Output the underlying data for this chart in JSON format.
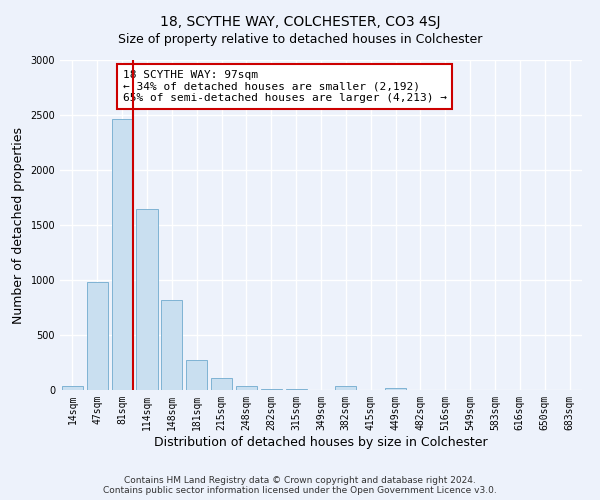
{
  "title": "18, SCYTHE WAY, COLCHESTER, CO3 4SJ",
  "subtitle": "Size of property relative to detached houses in Colchester",
  "xlabel": "Distribution of detached houses by size in Colchester",
  "ylabel": "Number of detached properties",
  "bar_labels": [
    "14sqm",
    "47sqm",
    "81sqm",
    "114sqm",
    "148sqm",
    "181sqm",
    "215sqm",
    "248sqm",
    "282sqm",
    "315sqm",
    "349sqm",
    "382sqm",
    "415sqm",
    "449sqm",
    "482sqm",
    "516sqm",
    "549sqm",
    "583sqm",
    "616sqm",
    "650sqm",
    "683sqm"
  ],
  "bar_values": [
    40,
    980,
    2460,
    1650,
    820,
    270,
    110,
    40,
    10,
    5,
    2,
    35,
    0,
    20,
    0,
    0,
    0,
    0,
    0,
    0,
    0
  ],
  "bar_color": "#c9dff0",
  "bar_edge_color": "#7fb3d3",
  "property_line_x": 2.425,
  "annotation_title": "18 SCYTHE WAY: 97sqm",
  "annotation_line1": "← 34% of detached houses are smaller (2,192)",
  "annotation_line2": "65% of semi-detached houses are larger (4,213) →",
  "annotation_box_color": "#ffffff",
  "annotation_box_edge_color": "#cc0000",
  "vline_color": "#cc0000",
  "ylim": [
    0,
    3000
  ],
  "yticks": [
    0,
    500,
    1000,
    1500,
    2000,
    2500,
    3000
  ],
  "footer_line1": "Contains HM Land Registry data © Crown copyright and database right 2024.",
  "footer_line2": "Contains public sector information licensed under the Open Government Licence v3.0.",
  "bg_color": "#edf2fb",
  "grid_color": "#ffffff",
  "title_fontsize": 10,
  "subtitle_fontsize": 9,
  "axis_label_fontsize": 9,
  "tick_fontsize": 7,
  "annotation_fontsize": 8,
  "footer_fontsize": 6.5
}
